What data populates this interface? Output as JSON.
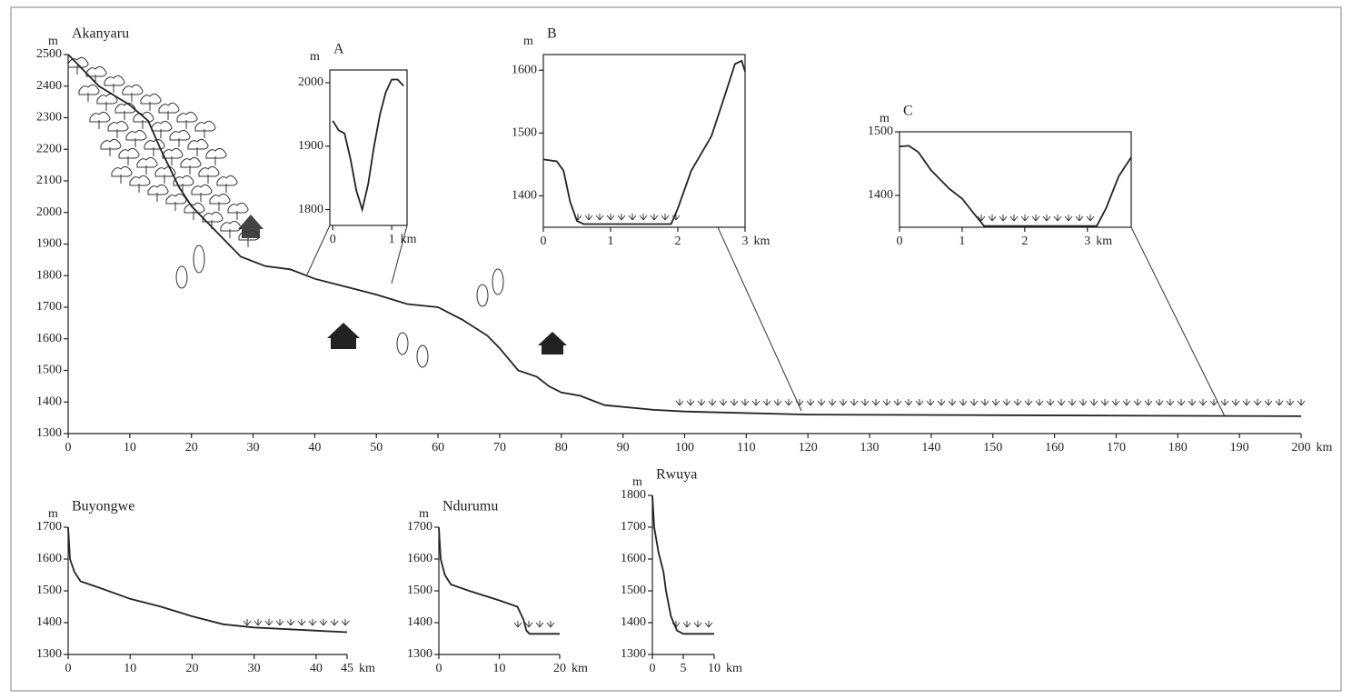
{
  "chart_data": [
    {
      "type": "line",
      "title": "Akanyaru",
      "y_unit": "m",
      "x_unit": "km",
      "color": "#222",
      "x": [
        0,
        2,
        5,
        10,
        13,
        15,
        18,
        20,
        25,
        28,
        32,
        36,
        40,
        46,
        50,
        55,
        60,
        64,
        68,
        70,
        73,
        76,
        78,
        80,
        83,
        87,
        95,
        100,
        120,
        200
      ],
      "values": [
        2500,
        2460,
        2400,
        2340,
        2290,
        2200,
        2080,
        2020,
        1920,
        1860,
        1830,
        1820,
        1790,
        1760,
        1740,
        1710,
        1700,
        1660,
        1610,
        1570,
        1500,
        1480,
        1450,
        1430,
        1420,
        1390,
        1375,
        1370,
        1360,
        1355
      ],
      "xlim": [
        0,
        200
      ],
      "ylim": [
        1300,
        2500
      ],
      "xticks": [
        0,
        10,
        20,
        30,
        40,
        50,
        60,
        70,
        80,
        90,
        100,
        110,
        120,
        130,
        140,
        150,
        160,
        170,
        180,
        190,
        200
      ],
      "yticks": [
        1300,
        1400,
        1500,
        1600,
        1700,
        1800,
        1900,
        2000,
        2100,
        2200,
        2300,
        2400,
        2500
      ],
      "frame": false
    },
    {
      "type": "line",
      "title": "A",
      "y_unit": "m",
      "x_unit": "km",
      "color": "#222",
      "x": [
        0,
        0.1,
        0.2,
        0.3,
        0.4,
        0.5,
        0.6,
        0.7,
        0.8,
        0.9,
        1.0,
        1.1,
        1.2
      ],
      "values": [
        1940,
        1925,
        1920,
        1880,
        1830,
        1800,
        1840,
        1900,
        1950,
        1985,
        2005,
        2005,
        1995
      ],
      "xlim": [
        -0.05,
        1.26
      ],
      "ylim": [
        1775,
        2020
      ],
      "xticks": [
        0,
        1
      ],
      "yticks": [
        1800,
        1900,
        2000
      ],
      "frame": true
    },
    {
      "type": "line",
      "title": "B",
      "y_unit": "m",
      "x_unit": "km",
      "color": "#222",
      "x": [
        0,
        0.2,
        0.3,
        0.4,
        0.5,
        0.6,
        1.9,
        2.0,
        2.2,
        2.5,
        2.7,
        2.85,
        2.95,
        3.0
      ],
      "values": [
        1458,
        1455,
        1440,
        1390,
        1360,
        1355,
        1355,
        1380,
        1440,
        1495,
        1560,
        1610,
        1615,
        1598
      ],
      "xlim": [
        0,
        3
      ],
      "ylim": [
        1350,
        1625
      ],
      "xticks": [
        0,
        1,
        2,
        3
      ],
      "yticks": [
        1400,
        1500,
        1600
      ],
      "frame": true
    },
    {
      "type": "line",
      "title": "C",
      "y_unit": "m",
      "x_unit": "km",
      "color": "#222",
      "x": [
        0,
        0.15,
        0.3,
        0.5,
        0.8,
        1.0,
        1.2,
        1.35,
        3.15,
        3.3,
        3.5,
        3.7
      ],
      "values": [
        1477,
        1478,
        1468,
        1440,
        1410,
        1395,
        1370,
        1352,
        1352,
        1380,
        1430,
        1460
      ],
      "xlim": [
        0,
        3.7
      ],
      "ylim": [
        1350,
        1500
      ],
      "xticks": [
        0,
        1,
        2,
        3
      ],
      "yticks": [
        1400,
        1500
      ],
      "frame": true
    },
    {
      "type": "line",
      "title": "Buyongwe",
      "y_unit": "m",
      "x_unit": "km",
      "color": "#222",
      "x": [
        0,
        0.3,
        1,
        2,
        5,
        10,
        15,
        20,
        25,
        30,
        40,
        45
      ],
      "values": [
        1700,
        1600,
        1560,
        1530,
        1510,
        1475,
        1450,
        1420,
        1395,
        1385,
        1375,
        1370
      ],
      "xlim": [
        0,
        45
      ],
      "ylim": [
        1300,
        1700
      ],
      "xticks": [
        0,
        10,
        20,
        30,
        40,
        45
      ],
      "yticks": [
        1300,
        1400,
        1500,
        1600,
        1700
      ],
      "frame": false
    },
    {
      "type": "line",
      "title": "Ndurumu",
      "y_unit": "m",
      "x_unit": "km",
      "color": "#222",
      "x": [
        0,
        0.3,
        1,
        2,
        5,
        10,
        13,
        14,
        14.5,
        15,
        20
      ],
      "values": [
        1700,
        1600,
        1550,
        1520,
        1500,
        1470,
        1450,
        1410,
        1375,
        1365,
        1365
      ],
      "xlim": [
        0,
        20
      ],
      "ylim": [
        1300,
        1700
      ],
      "xticks": [
        0,
        10,
        20
      ],
      "yticks": [
        1300,
        1400,
        1500,
        1600,
        1700
      ],
      "frame": false
    },
    {
      "type": "line",
      "title": "Rwuya",
      "y_unit": "m",
      "x_unit": "km",
      "color": "#222",
      "x": [
        0,
        0.3,
        1,
        1.8,
        2.2,
        3,
        4,
        5,
        10
      ],
      "values": [
        1800,
        1700,
        1620,
        1560,
        1500,
        1420,
        1375,
        1365,
        1365
      ],
      "xlim": [
        0,
        10
      ],
      "ylim": [
        1300,
        1800
      ],
      "xticks": [
        0,
        5,
        10
      ],
      "yticks": [
        1300,
        1400,
        1500,
        1600,
        1700,
        1800
      ],
      "frame": false
    }
  ]
}
